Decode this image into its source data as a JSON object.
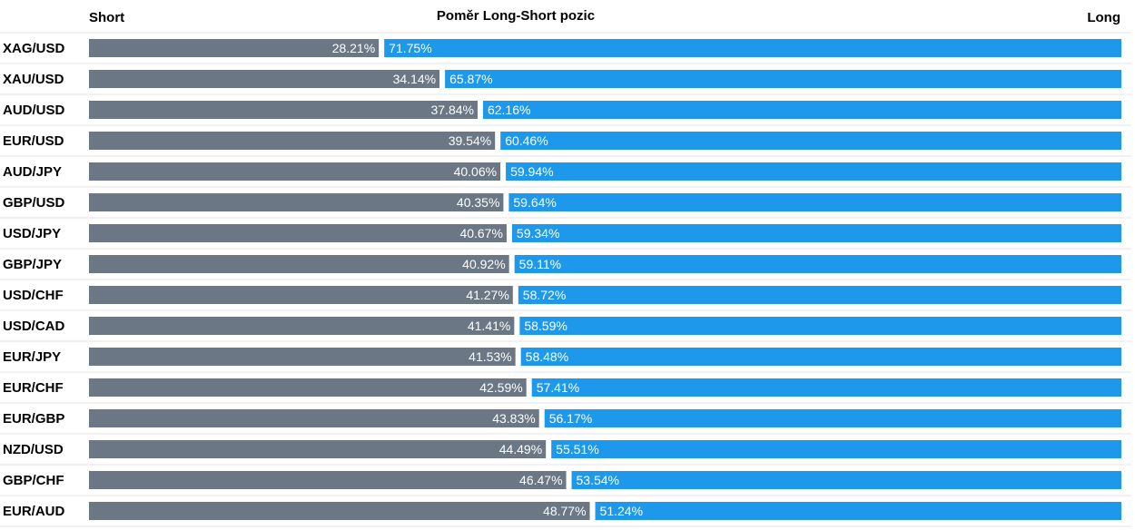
{
  "chart_data": {
    "type": "bar",
    "orientation": "horizontal-stacked",
    "title": "Poměr Long-Short pozic",
    "left_label": "Short",
    "right_label": "Long",
    "categories": [
      "XAG/USD",
      "XAU/USD",
      "AUD/USD",
      "EUR/USD",
      "AUD/JPY",
      "GBP/USD",
      "USD/JPY",
      "GBP/JPY",
      "USD/CHF",
      "USD/CAD",
      "EUR/JPY",
      "EUR/CHF",
      "EUR/GBP",
      "NZD/USD",
      "GBP/CHF",
      "EUR/AUD"
    ],
    "series": [
      {
        "name": "Short",
        "color": "#6b7785",
        "values": [
          28.21,
          34.14,
          37.84,
          39.54,
          40.06,
          40.35,
          40.67,
          40.92,
          41.27,
          41.41,
          41.53,
          42.59,
          43.83,
          44.49,
          46.47,
          48.77
        ],
        "labels": [
          "28.21%",
          "34.14%",
          "37.84%",
          "39.54%",
          "40.06%",
          "40.35%",
          "40.67%",
          "40.92%",
          "41.27%",
          "41.41%",
          "41.53%",
          "42.59%",
          "43.83%",
          "44.49%",
          "46.47%",
          "48.77%"
        ]
      },
      {
        "name": "Long",
        "color": "#1e98eb",
        "values": [
          71.75,
          65.87,
          62.16,
          60.46,
          59.94,
          59.64,
          59.34,
          59.11,
          58.72,
          58.59,
          58.48,
          57.41,
          56.17,
          55.51,
          53.54,
          51.24
        ],
        "labels": [
          "71.75%",
          "65.87%",
          "62.16%",
          "60.46%",
          "59.94%",
          "59.64%",
          "59.34%",
          "59.11%",
          "58.72%",
          "58.59%",
          "58.48%",
          "57.41%",
          "56.17%",
          "55.51%",
          "53.54%",
          "51.24%"
        ]
      }
    ],
    "xlim": [
      0,
      100
    ]
  },
  "colors": {
    "grid": "#e6e6e6",
    "background": "#ffffff"
  }
}
